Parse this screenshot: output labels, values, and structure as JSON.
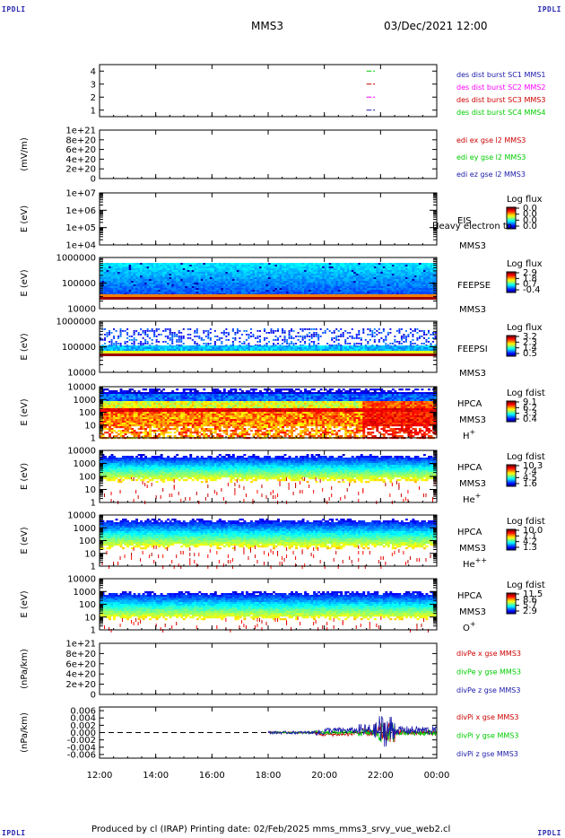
{
  "header": {
    "corner_label": "IPDLI",
    "spacecraft": "MMS3",
    "datetime": "03/Dec/2021 12:00"
  },
  "footer": {
    "text": "Produced by cl (IRAP)   Printing date: 02/Feb/2025   mms_mms3_srvy_vue_web2.cl"
  },
  "colors": {
    "blue": "#0000ff",
    "red": "#ff0000",
    "green": "#00cc00",
    "magenta": "#ff00ff",
    "dark_blue": "#1a1aaa",
    "dark_red": "#cc0000"
  },
  "chart_data": [
    {
      "type": "line",
      "id": "burst",
      "ylim": [
        0.5,
        4.5
      ],
      "ytick_labels": [
        "1",
        "2",
        "3",
        "4"
      ],
      "yticks": [
        1,
        2,
        3,
        4
      ],
      "ylabel": "",
      "legend": [
        {
          "text": "des dist burst SC1 MMS1",
          "color": "#1a1aaa"
        },
        {
          "text": "des dist burst SC2 MMS2",
          "color": "#ff00ff"
        },
        {
          "text": "des dist burst SC3 MMS3",
          "color": "#cc0000"
        },
        {
          "text": "des dist burst SC4 MMS4",
          "color": "#00cc00"
        }
      ],
      "series": [
        {
          "level": 4,
          "color": "#00cc00",
          "x": [
            "21:30",
            "21:48"
          ]
        },
        {
          "level": 3,
          "color": "#cc0000",
          "x": [
            "21:30",
            "21:48"
          ]
        },
        {
          "level": 2,
          "color": "#ff00ff",
          "x": [
            "21:30",
            "21:48"
          ]
        },
        {
          "level": 1,
          "color": "#1a1aaa",
          "x": [
            "21:30",
            "21:48"
          ]
        }
      ]
    },
    {
      "type": "line",
      "id": "edi",
      "ylim": [
        0,
        1e+21
      ],
      "ytick_labels": [
        "0",
        "2e+20",
        "4e+20",
        "6e+20",
        "8e+20",
        "1e+21"
      ],
      "yticks": [
        0,
        2e+20,
        4e+20,
        6e+20,
        8e+20,
        1e+21
      ],
      "ylabel": "(mV/m)",
      "legend": [
        {
          "text": "edi ex gse l2 MMS3",
          "color": "#cc0000"
        },
        {
          "text": "edi ey gse l2 MMS3",
          "color": "#00cc00"
        },
        {
          "text": "edi ez gse l2 MMS3",
          "color": "#1a1aaa"
        }
      ],
      "zero_line": true
    },
    {
      "type": "heatmap",
      "id": "eis",
      "ylabel": "E (eV)",
      "ylog": true,
      "ylim": [
        10000.0,
        10000000.0
      ],
      "ytick_labels": [
        "1e+04",
        "1e+05",
        "1e+06",
        "1e+07"
      ],
      "labels": [
        "EIS",
        "MMS3"
      ],
      "overlay_text": "Heavy electron to",
      "colorbar": {
        "title": "Log flux",
        "ticks": [
          "0.0",
          "0.0",
          "0.0",
          "0.0"
        ]
      },
      "empty": true
    },
    {
      "type": "heatmap",
      "id": "feepse",
      "ylabel": "E (eV)",
      "ylog": true,
      "ylim": [
        10000.0,
        1000000.0
      ],
      "ytick_labels": [
        "10000",
        "100000",
        "1000000"
      ],
      "labels": [
        "FEEPSE",
        "MMS3"
      ],
      "colorbar": {
        "title": "Log flux",
        "ticks": [
          "2.9",
          "1.8",
          "0.7",
          "-0.4"
        ]
      }
    },
    {
      "type": "heatmap",
      "id": "feepsi",
      "ylabel": "E (eV)",
      "ylog": true,
      "ylim": [
        10000.0,
        1000000.0
      ],
      "ytick_labels": [
        "10000",
        "100000",
        "1000000"
      ],
      "labels": [
        "FEEPSI",
        "MMS3"
      ],
      "colorbar": {
        "title": "Log flux",
        "ticks": [
          "3.2",
          "2.3",
          "1.4",
          "0.5"
        ]
      }
    },
    {
      "type": "heatmap",
      "id": "hpca_h",
      "ylabel": "E (eV)",
      "ylog": true,
      "ylim": [
        1,
        10000.0
      ],
      "ytick_labels": [
        "1",
        "10",
        "100",
        "1000",
        "10000"
      ],
      "labels": [
        "HPCA",
        "MMS3",
        "H+"
      ],
      "colorbar": {
        "title": "Log fdist",
        "ticks": [
          "9.1",
          "6.2",
          "3.3",
          "0.4"
        ]
      }
    },
    {
      "type": "heatmap",
      "id": "hpca_he",
      "ylabel": "E (eV)",
      "ylog": true,
      "ylim": [
        1,
        10000.0
      ],
      "ytick_labels": [
        "1",
        "10",
        "100",
        "1000",
        "10000"
      ],
      "labels": [
        "HPCA",
        "MMS3",
        "He+"
      ],
      "colorbar": {
        "title": "Log fdist",
        "ticks": [
          "10.3",
          "7.4",
          "4.5",
          "1.6"
        ]
      }
    },
    {
      "type": "heatmap",
      "id": "hpca_hepp",
      "ylabel": "E (eV)",
      "ylog": true,
      "ylim": [
        1,
        10000.0
      ],
      "ytick_labels": [
        "1",
        "10",
        "100",
        "1000",
        "10000"
      ],
      "labels": [
        "HPCA",
        "MMS3",
        "He++"
      ],
      "colorbar": {
        "title": "Log fdist",
        "ticks": [
          "10.0",
          "7.1",
          "4.2",
          "1.3"
        ]
      }
    },
    {
      "type": "heatmap",
      "id": "hpca_o",
      "ylabel": "E (eV)",
      "ylog": true,
      "ylim": [
        1,
        10000.0
      ],
      "ytick_labels": [
        "1",
        "10",
        "100",
        "1000",
        "10000"
      ],
      "labels": [
        "HPCA",
        "MMS3",
        "O+"
      ],
      "colorbar": {
        "title": "Log fdist",
        "ticks": [
          "11.5",
          "8.6",
          "5.7",
          "2.9"
        ]
      }
    },
    {
      "type": "line",
      "id": "divpe",
      "ylim": [
        0,
        1e+21
      ],
      "ytick_labels": [
        "0",
        "2e+20",
        "4e+20",
        "6e+20",
        "8e+20",
        "1e+21"
      ],
      "yticks": [
        0,
        2e+20,
        4e+20,
        6e+20,
        8e+20,
        1e+21
      ],
      "ylabel": "(nPa/km)",
      "legend": [
        {
          "text": "divPe x gse MMS3",
          "color": "#cc0000"
        },
        {
          "text": "divPe y gse MMS3",
          "color": "#00cc00"
        },
        {
          "text": "divPe z gse MMS3",
          "color": "#1a1aaa"
        }
      ],
      "zero_line": true
    },
    {
      "type": "line",
      "id": "divpi",
      "ylim": [
        -0.007,
        0.007
      ],
      "ytick_labels": [
        "-0.006",
        "-0.004",
        "-0.002",
        "0.000",
        "0.002",
        "0.004",
        "0.006"
      ],
      "yticks": [
        -0.006,
        -0.004,
        -0.002,
        0,
        0.002,
        0.004,
        0.006
      ],
      "ylabel": "(nPa/km)",
      "legend": [
        {
          "text": "divPi x gse MMS3",
          "color": "#cc0000"
        },
        {
          "text": "divPi y gse MMS3",
          "color": "#00cc00"
        },
        {
          "text": "divPi z gse MMS3",
          "color": "#1a1aaa"
        }
      ],
      "zero_line": true,
      "data_start": "18:00"
    }
  ],
  "xaxis": {
    "ticks": [
      "12:00",
      "14:00",
      "16:00",
      "18:00",
      "20:00",
      "22:00",
      "00:00"
    ],
    "range_hours": [
      12,
      24
    ]
  }
}
